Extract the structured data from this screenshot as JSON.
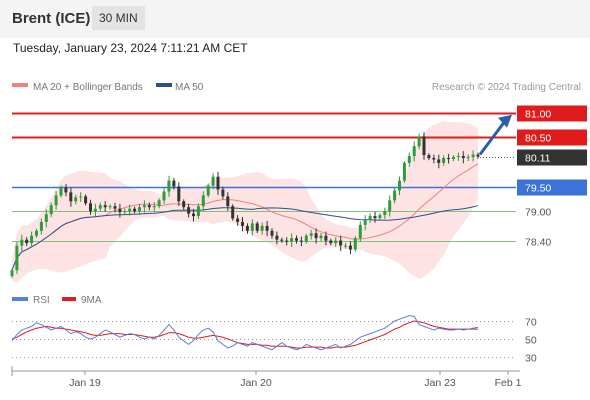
{
  "header": {
    "instrument": "Brent (ICE)",
    "timeframe": "30 MIN",
    "datetime": "Tuesday, January 23, 2024 7:11:21 AM CET"
  },
  "credit": "Research © 2024 Trading Central",
  "colors": {
    "resistance": "#e01b1b",
    "pivot": "#3b73d9",
    "support": "#7cc47c",
    "last": "#333333",
    "bull": "#2e9c3a",
    "bear": "#333333",
    "ma20": "#f08080",
    "bands": "#fde3e3",
    "ma50": "#2e4f8f",
    "rsi": "#5b7fd6",
    "rsi_ma": "#e01b1b",
    "arrow": "#2a5db0"
  },
  "chart_data": [
    {
      "type": "candlestick",
      "legend": [
        {
          "name": "MA 20 + Bollinger Bands",
          "color": "#f08080"
        },
        {
          "name": "MA 50",
          "color": "#2e4f8f"
        }
      ],
      "ylim": [
        77.6,
        81.3
      ],
      "x_ticks": [
        "Jan 19",
        "Jan 20",
        "Jan 23",
        "Feb 1"
      ],
      "levels": [
        {
          "label": "81.00",
          "value": 81.0,
          "kind": "resistance"
        },
        {
          "label": "80.50",
          "value": 80.5,
          "kind": "resistance"
        },
        {
          "label": "80.11",
          "value": 80.11,
          "kind": "last"
        },
        {
          "label": "79.50",
          "value": 79.5,
          "kind": "pivot"
        },
        {
          "label": "79.00",
          "value": 79.0,
          "kind": "support"
        },
        {
          "label": "78.40",
          "value": 78.4,
          "kind": "support"
        }
      ],
      "close": [
        77.8,
        78.3,
        78.42,
        78.35,
        78.5,
        78.6,
        78.78,
        78.94,
        79.12,
        79.32,
        79.48,
        79.38,
        79.2,
        79.28,
        79.3,
        79.16,
        79.0,
        79.05,
        79.12,
        79.08,
        79.1,
        79.05,
        78.98,
        79.0,
        79.05,
        79.0,
        79.08,
        79.12,
        79.08,
        79.1,
        79.22,
        79.4,
        79.62,
        79.5,
        79.2,
        79.08,
        78.95,
        78.9,
        79.1,
        79.32,
        79.52,
        79.7,
        79.44,
        79.3,
        79.1,
        78.85,
        78.78,
        78.7,
        78.6,
        78.75,
        78.6,
        78.7,
        78.6,
        78.5,
        78.42,
        78.4,
        78.38,
        78.45,
        78.4,
        78.38,
        78.5,
        78.55,
        78.45,
        78.5,
        78.4,
        78.35,
        78.4,
        78.3,
        78.3,
        78.22,
        78.45,
        78.72,
        78.82,
        78.9,
        78.86,
        78.92,
        79.0,
        79.22,
        79.42,
        79.62,
        79.98,
        80.12,
        80.32,
        80.52,
        80.14,
        80.08,
        80.05,
        79.98,
        80.08,
        80.06,
        80.1,
        80.12,
        80.08,
        80.1,
        80.15,
        80.11
      ],
      "rsi": {
        "ticks": [
          70,
          50,
          30
        ],
        "series": [
          {
            "name": "RSI",
            "color": "#5b7fd6"
          },
          {
            "name": "9MA",
            "color": "#e01b1b"
          }
        ],
        "rsi_values": [
          48,
          55,
          60,
          62,
          64,
          68,
          66,
          63,
          60,
          62,
          64,
          60,
          56,
          58,
          56,
          52,
          50,
          52,
          56,
          60,
          58,
          55,
          52,
          54,
          56,
          55,
          52,
          50,
          52,
          50,
          54,
          60,
          66,
          60,
          52,
          48,
          44,
          48,
          55,
          60,
          62,
          58,
          48,
          44,
          40,
          42,
          46,
          44,
          42,
          46,
          44,
          42,
          40,
          38,
          42,
          46,
          42,
          40,
          38,
          40,
          44,
          42,
          40,
          38,
          40,
          42,
          44,
          40,
          42,
          44,
          48,
          52,
          54,
          56,
          58,
          60,
          62,
          66,
          70,
          72,
          74,
          76,
          75,
          66,
          64,
          62,
          60,
          62,
          61,
          60,
          60,
          61,
          60,
          61,
          62,
          63
        ],
        "ma_values": [
          50,
          52,
          55,
          58,
          60,
          62,
          63,
          64,
          63,
          62,
          62,
          61,
          60,
          59,
          58,
          57,
          55,
          54,
          54,
          55,
          56,
          56,
          56,
          55,
          55,
          55,
          54,
          53,
          52,
          52,
          53,
          55,
          57,
          57,
          56,
          54,
          52,
          51,
          51,
          52,
          53,
          54,
          53,
          52,
          50,
          48,
          46,
          45,
          44,
          44,
          44,
          43,
          43,
          42,
          42,
          42,
          42,
          41,
          40,
          40,
          41,
          41,
          41,
          41,
          40,
          40,
          41,
          41,
          41,
          42,
          43,
          45,
          47,
          49,
          51,
          53,
          55,
          58,
          61,
          63,
          66,
          68,
          70,
          69,
          68,
          66,
          64,
          63,
          62,
          61,
          61,
          61,
          61,
          61,
          61,
          61
        ]
      }
    }
  ]
}
